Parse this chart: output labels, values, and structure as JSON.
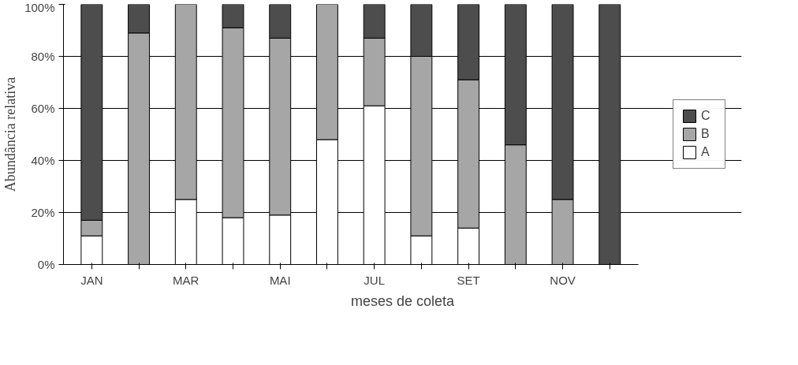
{
  "chart_data": {
    "type": "bar",
    "stacked": true,
    "xlabel": "meses de coleta",
    "ylabel": "Abundância relativa",
    "categories": [
      "JAN",
      null,
      "MAR",
      null,
      "MAI",
      null,
      "JUL",
      null,
      "SET",
      null,
      "NOV",
      null
    ],
    "series": [
      {
        "name": "A",
        "color": "#ffffff",
        "values": [
          11,
          0,
          25,
          18,
          19,
          48,
          61,
          11,
          14,
          0,
          0,
          0
        ]
      },
      {
        "name": "B",
        "color": "#a6a6a6",
        "values": [
          6,
          89,
          75,
          73,
          68,
          52,
          26,
          69,
          57,
          46,
          25,
          0
        ]
      },
      {
        "name": "C",
        "color": "#4d4d4d",
        "values": [
          83,
          11,
          0,
          9,
          13,
          0,
          13,
          20,
          29,
          54,
          75,
          100
        ]
      }
    ],
    "ylim": [
      0,
      100
    ],
    "yticks": [
      {
        "value": 0,
        "label": "0%"
      },
      {
        "value": 20,
        "label": "20%"
      },
      {
        "value": 40,
        "label": "40%"
      },
      {
        "value": 60,
        "label": "60%"
      },
      {
        "value": 80,
        "label": "80%"
      },
      {
        "value": 100,
        "label": "100%"
      }
    ],
    "grid": "y",
    "legend": "right"
  }
}
